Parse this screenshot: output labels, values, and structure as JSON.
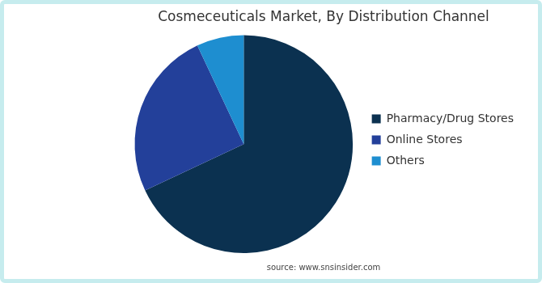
{
  "chart_data": {
    "type": "pie",
    "title": "Cosmeceuticals Market, By Distribution Channel",
    "source": "source: www.snsinsider.com",
    "categories": [
      "Pharmacy/Drug Stores",
      "Online Stores",
      "Others"
    ],
    "values": [
      68,
      25,
      7
    ],
    "colors": [
      "#0b3150",
      "#23409a",
      "#1e8ed0"
    ],
    "legend": "right"
  }
}
